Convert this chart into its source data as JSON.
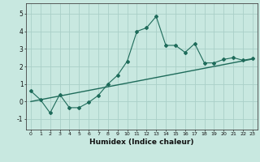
{
  "xlabel": "Humidex (Indice chaleur)",
  "xlim": [
    -0.5,
    23.5
  ],
  "ylim": [
    -1.6,
    5.6
  ],
  "xticks": [
    0,
    1,
    2,
    3,
    4,
    5,
    6,
    7,
    8,
    9,
    10,
    11,
    12,
    13,
    14,
    15,
    16,
    17,
    18,
    19,
    20,
    21,
    22,
    23
  ],
  "yticks": [
    -1,
    0,
    1,
    2,
    3,
    4,
    5
  ],
  "bg_color": "#c8e8e0",
  "grid_color": "#aacfc8",
  "line_color": "#1e6b5a",
  "jagged_x": [
    0,
    1,
    2,
    3,
    4,
    5,
    6,
    7,
    8,
    9,
    10,
    11,
    12,
    13,
    14,
    15,
    16,
    17,
    18,
    19,
    20,
    21,
    22,
    23
  ],
  "jagged_y": [
    0.6,
    0.1,
    -0.65,
    0.4,
    -0.35,
    -0.35,
    -0.05,
    0.35,
    1.0,
    1.5,
    2.3,
    4.0,
    4.2,
    4.85,
    3.2,
    3.2,
    2.8,
    3.3,
    2.2,
    2.2,
    2.4,
    2.5,
    2.35,
    2.45
  ],
  "trend_x": [
    0,
    23
  ],
  "trend_y": [
    0.0,
    2.42
  ]
}
